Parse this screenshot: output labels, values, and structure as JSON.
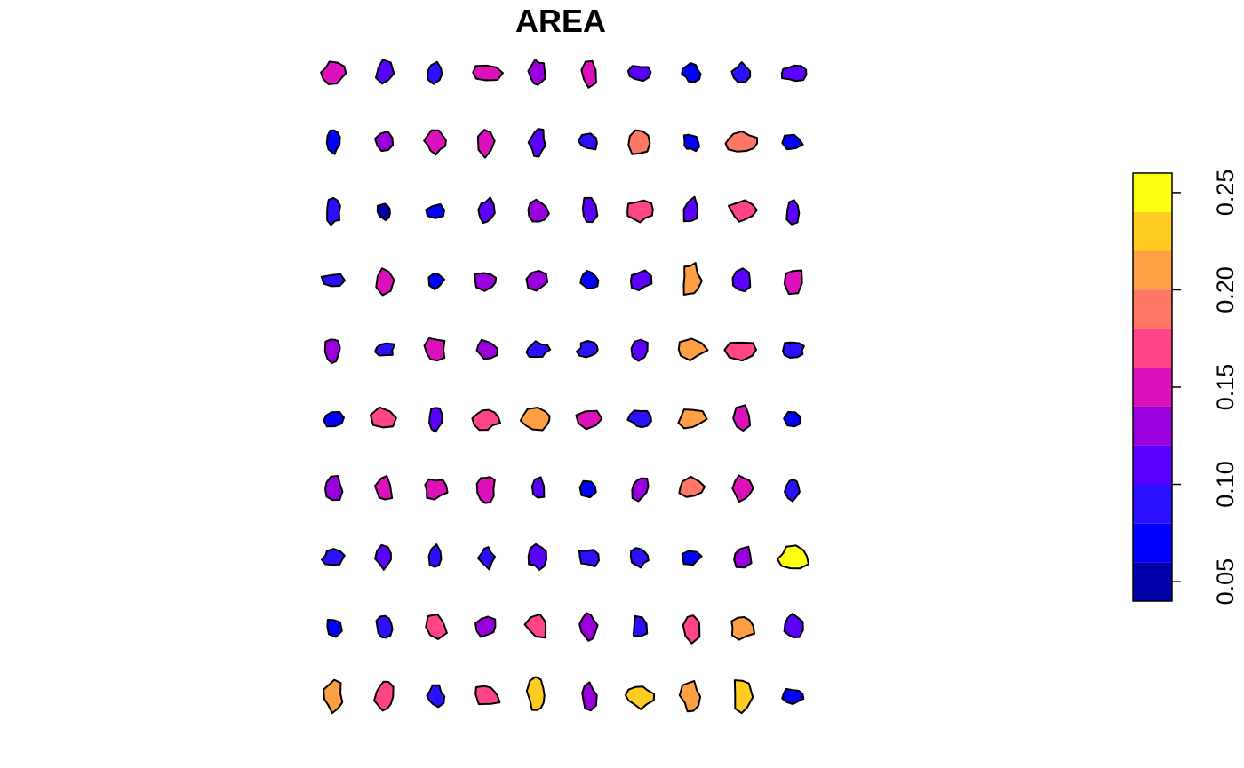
{
  "chart_data": {
    "type": "choropleth",
    "title": "AREA",
    "layout": "grid of small multiples (10 rows x 10 columns)",
    "legend": {
      "placement": "right",
      "orientation": "vertical",
      "breaks": [
        0.04,
        0.06,
        0.08,
        0.1,
        0.12,
        0.14,
        0.16,
        0.18,
        0.2,
        0.22,
        0.24,
        0.26
      ],
      "colors": [
        "#0000aa",
        "#0000ff",
        "#2a10ff",
        "#5a00ff",
        "#9900dd",
        "#dd11bb",
        "#ff4488",
        "#ff7766",
        "#ff9f44",
        "#ffcc22",
        "#ffff11"
      ],
      "tick_values": [
        0.05,
        0.1,
        0.15,
        0.2,
        0.25
      ],
      "tick_labels": [
        "0.05",
        "0.10",
        "0.15",
        "0.20",
        "0.25"
      ]
    },
    "values": [
      [
        0.14,
        0.11,
        0.08,
        0.15,
        0.12,
        0.15,
        0.1,
        0.07,
        0.09,
        0.11
      ],
      [
        0.07,
        0.12,
        0.15,
        0.15,
        0.11,
        0.09,
        0.18,
        0.06,
        0.18,
        0.07
      ],
      [
        0.09,
        0.05,
        0.06,
        0.1,
        0.12,
        0.11,
        0.16,
        0.11,
        0.17,
        0.11
      ],
      [
        0.08,
        0.14,
        0.07,
        0.13,
        0.12,
        0.07,
        0.11,
        0.21,
        0.1,
        0.15
      ],
      [
        0.12,
        0.08,
        0.15,
        0.12,
        0.09,
        0.08,
        0.11,
        0.21,
        0.17,
        0.08
      ],
      [
        0.06,
        0.17,
        0.1,
        0.17,
        0.21,
        0.15,
        0.09,
        0.21,
        0.15,
        0.07
      ],
      [
        0.13,
        0.15,
        0.15,
        0.15,
        0.11,
        0.07,
        0.12,
        0.18,
        0.15,
        0.08
      ],
      [
        0.09,
        0.1,
        0.09,
        0.08,
        0.1,
        0.09,
        0.08,
        0.06,
        0.13,
        0.25
      ],
      [
        0.07,
        0.09,
        0.17,
        0.12,
        0.16,
        0.12,
        0.08,
        0.17,
        0.2,
        0.11
      ],
      [
        0.2,
        0.17,
        0.09,
        0.17,
        0.23,
        0.12,
        0.23,
        0.2,
        0.23,
        0.07
      ]
    ]
  }
}
